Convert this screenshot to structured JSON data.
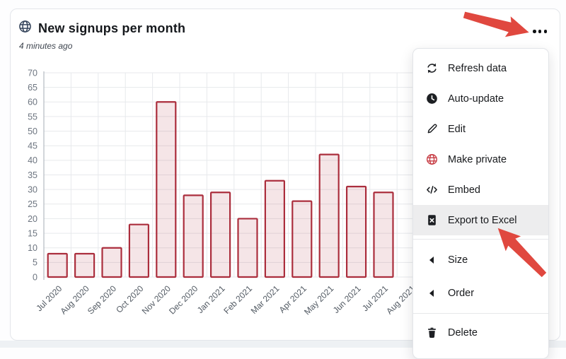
{
  "card": {
    "title": "New signups per month",
    "subtitle": "4 minutes ago",
    "title_icon": "globe-icon",
    "title_icon_color": "#36455c",
    "menu_button_icon": "ellipsis-icon"
  },
  "chart_data": {
    "type": "bar",
    "title": "New signups per month",
    "xlabel": "",
    "ylabel": "",
    "categories": [
      "Jul 2020",
      "Aug 2020",
      "Sep 2020",
      "Oct 2020",
      "Nov 2020",
      "Dec 2020",
      "Jan 2021",
      "Feb 2021",
      "Mar 2021",
      "Apr 2021",
      "May 2021",
      "Jun 2021",
      "Jul 2021",
      "Aug 2021"
    ],
    "values": [
      8,
      8,
      10,
      18,
      60,
      28,
      29,
      20,
      33,
      26,
      42,
      31,
      29,
      null
    ],
    "ylim": [
      0,
      70
    ],
    "ytick_step": 5,
    "grid": true,
    "legend": "none",
    "bar_fill": "#b02a37",
    "bar_fill_opacity": 0.12,
    "bar_stroke": "#ab2e3d",
    "grid_color": "#e7e9ec",
    "axis_color": "#b9bfc6",
    "tick_label_color": "#6d7580",
    "x_label_color": "#525a63"
  },
  "menu": {
    "items": [
      {
        "label": "Refresh data",
        "icon": "refresh-icon"
      },
      {
        "label": "Auto-update",
        "icon": "clock-icon"
      },
      {
        "label": "Edit",
        "icon": "pencil-icon"
      },
      {
        "label": "Make private",
        "icon": "globe-icon",
        "icon_color": "#c63a42"
      },
      {
        "label": "Embed",
        "icon": "code-icon"
      },
      {
        "label": "Export to Excel",
        "icon": "excel-icon",
        "highlighted": true
      }
    ],
    "submenu_items": [
      {
        "label": "Size",
        "icon": "chevron-left-icon"
      },
      {
        "label": "Order",
        "icon": "chevron-left-icon"
      }
    ],
    "footer_items": [
      {
        "label": "Delete",
        "icon": "trash-icon"
      }
    ],
    "icon_color": "#1d1f23",
    "highlight_color": "#ededee"
  },
  "annotations": {
    "arrow_color": "#e0483f",
    "arrows": [
      {
        "name": "arrow-to-menu-button",
        "points_at": "ellipsis menu button"
      },
      {
        "name": "arrow-to-export",
        "points_at": "Export to Excel item"
      }
    ]
  }
}
